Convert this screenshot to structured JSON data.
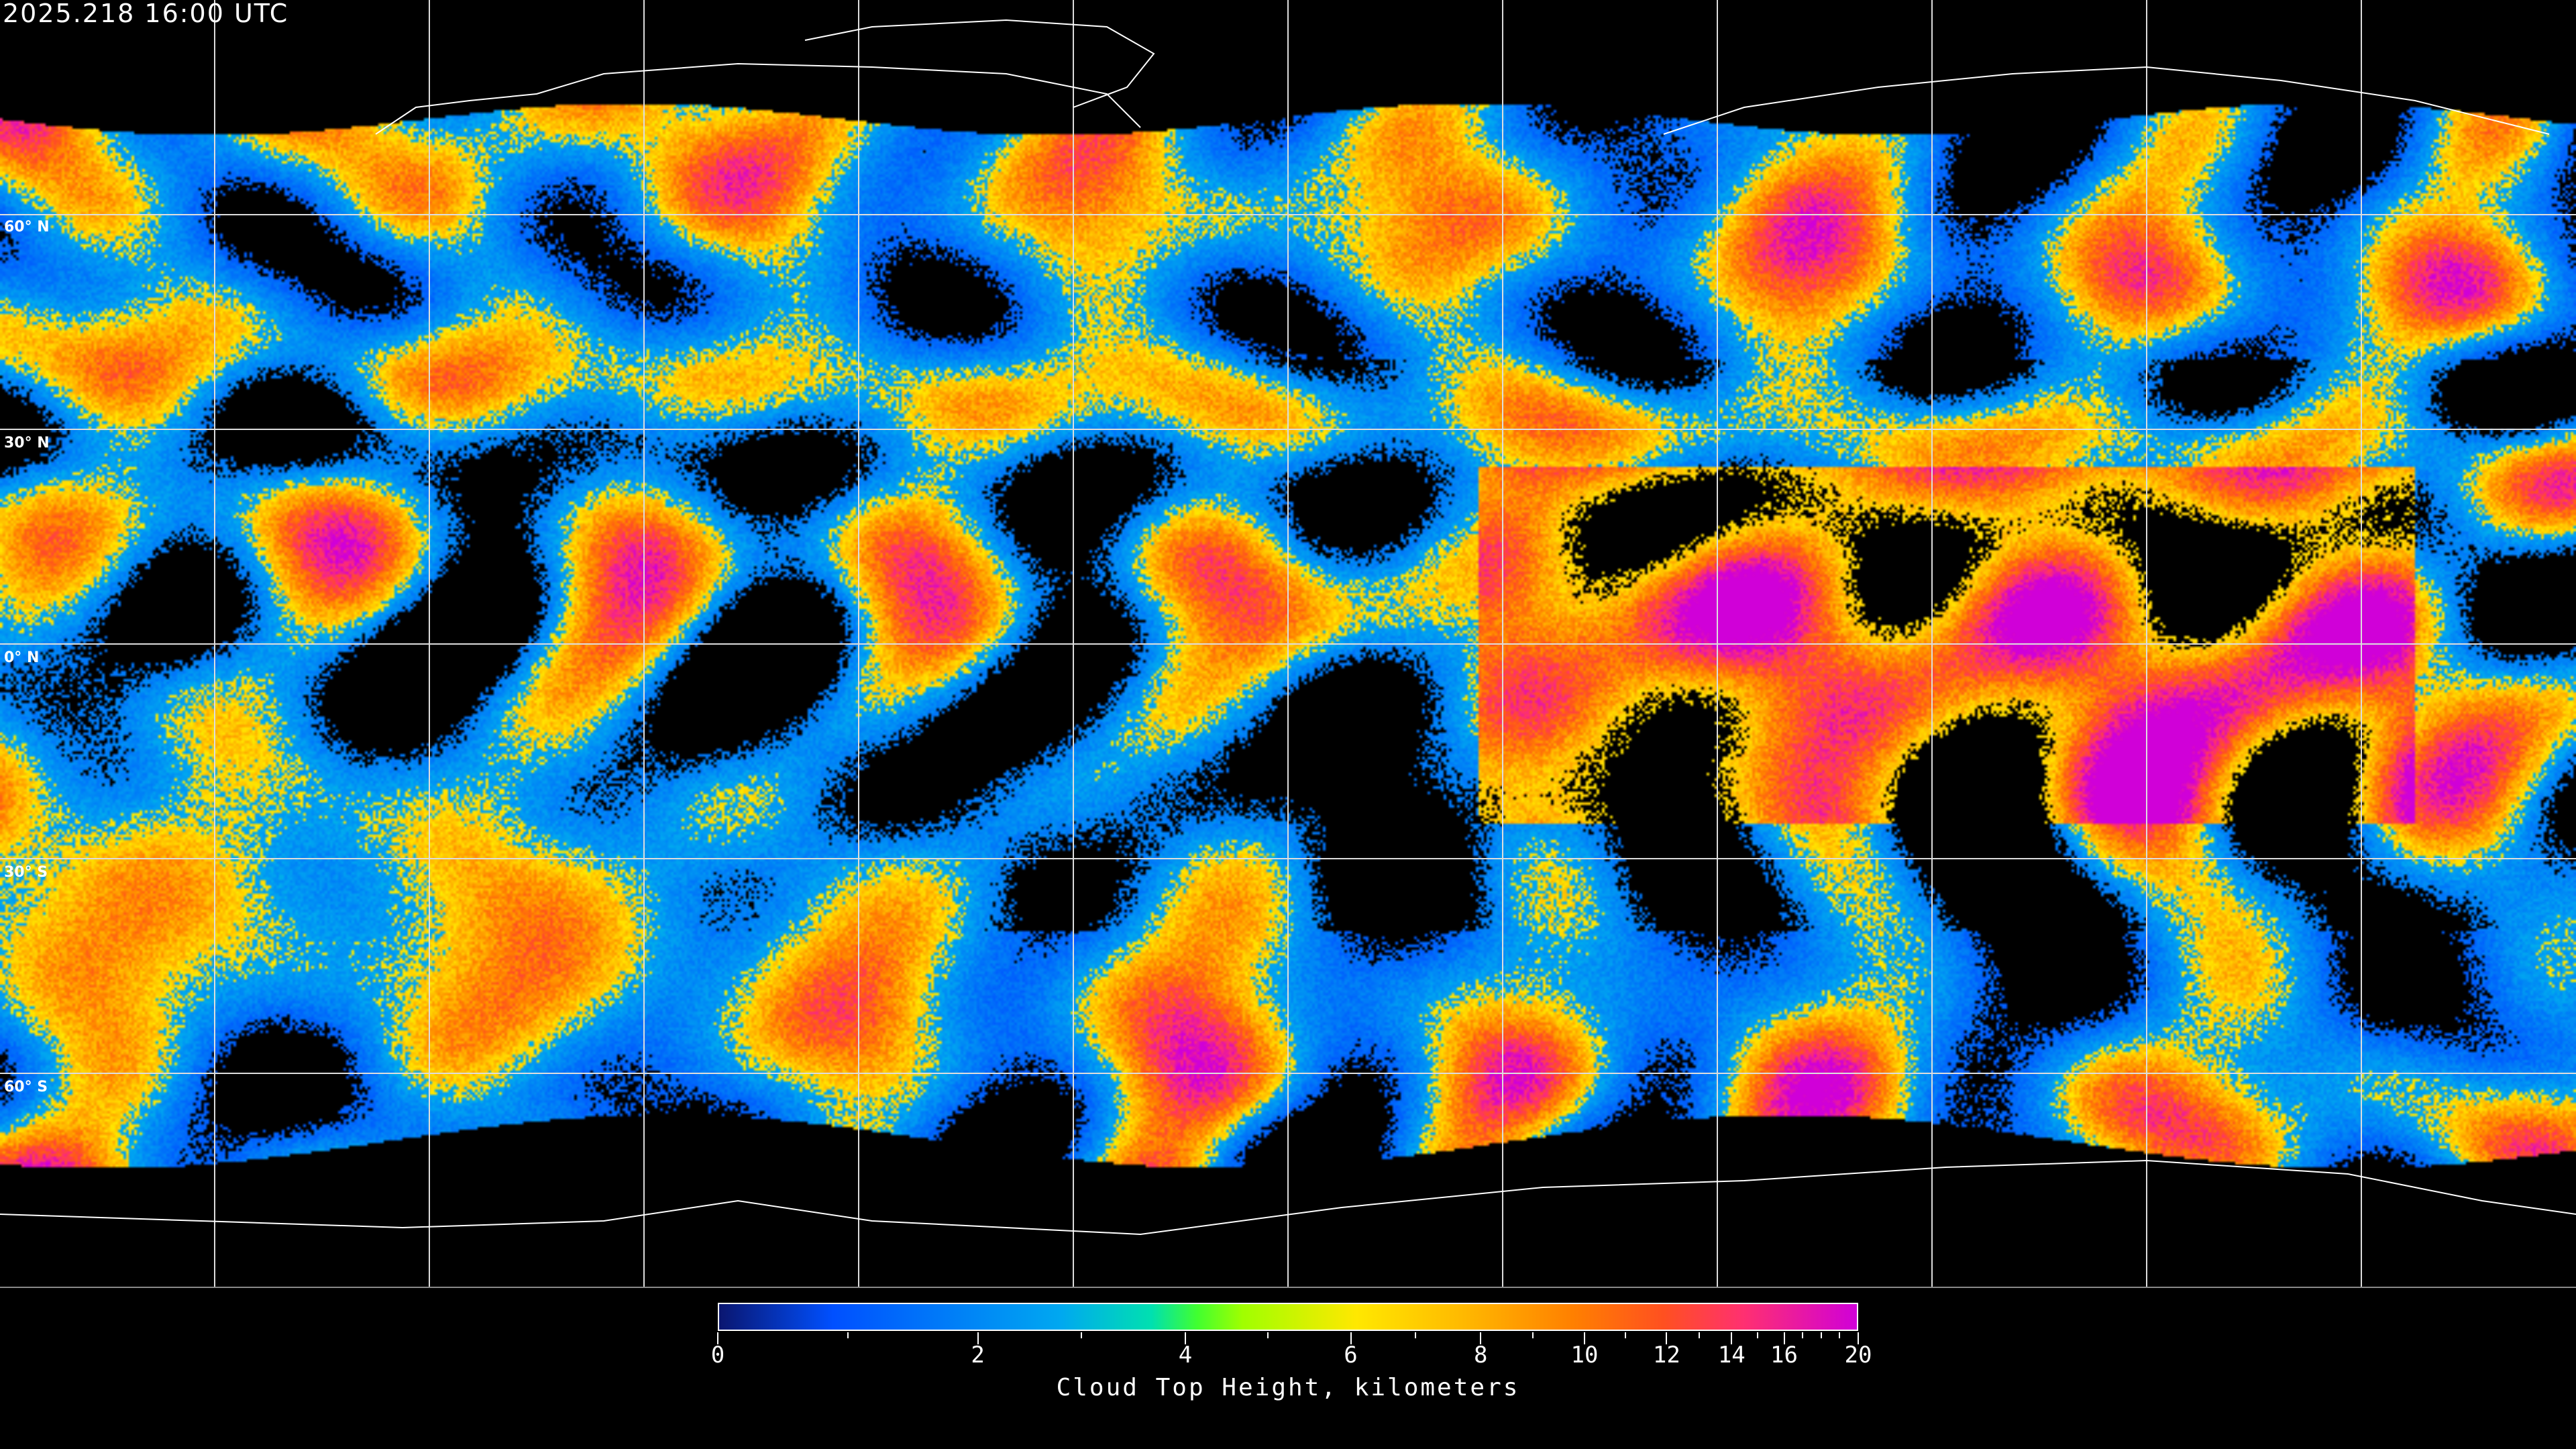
{
  "header": {
    "timestamp": "2025.218 16:00 UTC"
  },
  "map": {
    "projection": "equirectangular",
    "gridline_spacing_degrees": 30,
    "latitude_labels": [
      "60° N",
      "30° N",
      "0° N",
      "30° S",
      "60° S"
    ],
    "coastline_color": "#ffffff",
    "gridline_color": "#ffffff",
    "no_data_color": "#000000"
  },
  "colorbar": {
    "title": "Cloud Top Height, kilometers",
    "min": 0,
    "max": 20,
    "major_ticks": [
      "0",
      "2",
      "4",
      "6",
      "8",
      "10",
      "12",
      "14",
      "16",
      "20"
    ],
    "minor_ticks": [
      1,
      3,
      5,
      7,
      9,
      11,
      13,
      15,
      17,
      18,
      19
    ],
    "colors": [
      "#0a1670",
      "#0050ff",
      "#00a8f0",
      "#00e0b0",
      "#40ff30",
      "#a0ff00",
      "#ffe800",
      "#ffbb00",
      "#ff8000",
      "#ff5020",
      "#ff3070",
      "#d000d8"
    ]
  }
}
